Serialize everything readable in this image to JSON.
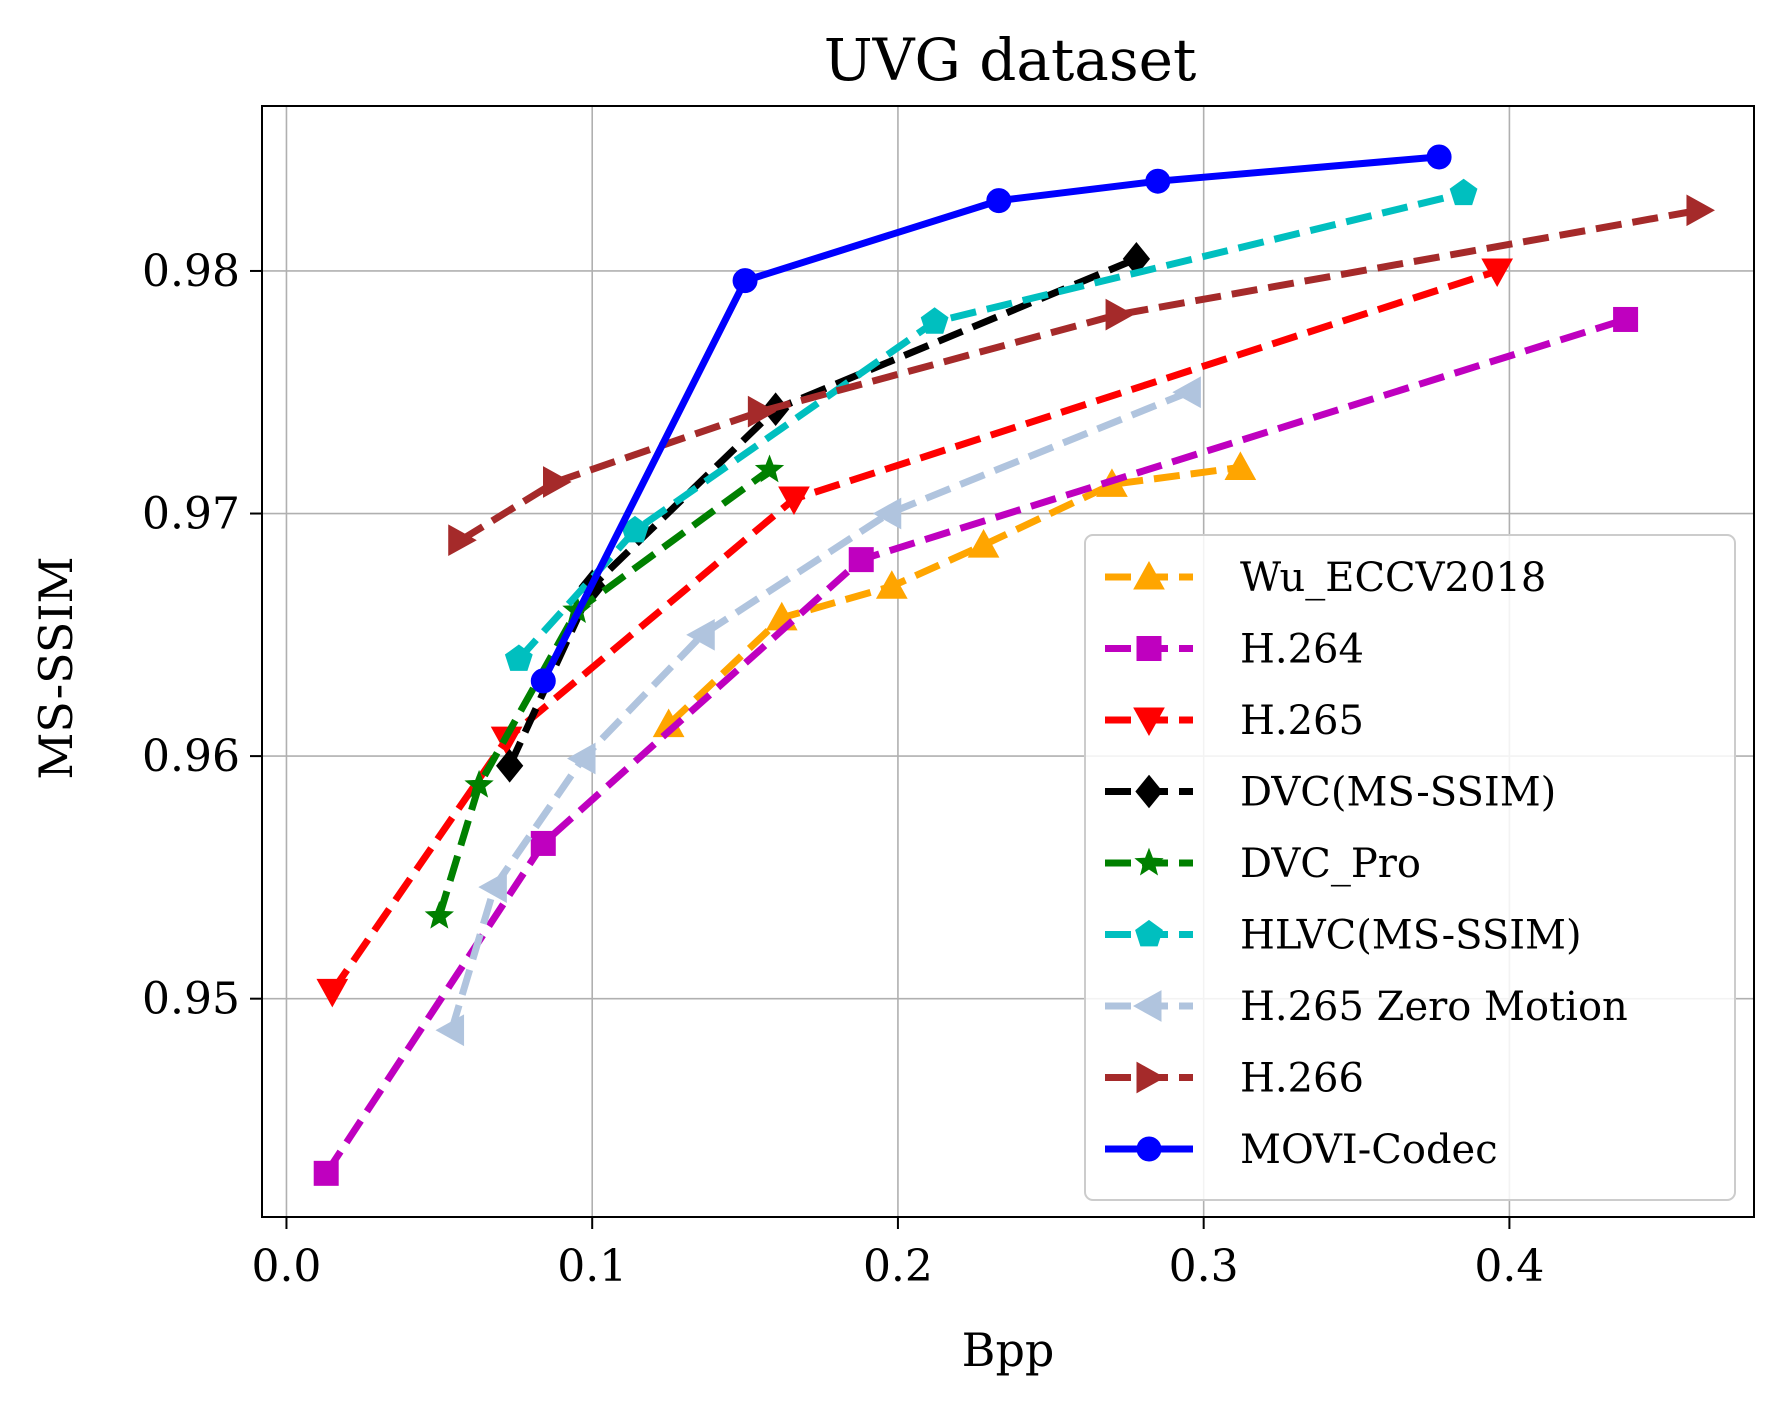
{
  "chart_data": {
    "type": "line",
    "title": "UVG dataset",
    "xlabel": "Bpp",
    "ylabel": "MS-SSIM",
    "xlim": [
      -0.008,
      0.48
    ],
    "ylim": [
      0.941,
      0.9868
    ],
    "xticks": [
      0.0,
      0.1,
      0.2,
      0.3,
      0.4
    ],
    "xtick_labels": [
      "0.0",
      "0.1",
      "0.2",
      "0.3",
      "0.4"
    ],
    "yticks": [
      0.95,
      0.96,
      0.97,
      0.98
    ],
    "ytick_labels": [
      "0.95",
      "0.96",
      "0.97",
      "0.98"
    ],
    "grid": true,
    "legend_position": "lower-right",
    "series": [
      {
        "name": "Wu_ECCV2018",
        "color": "#ffa500",
        "linestyle": "dashed",
        "marker": "triangle-up",
        "x": [
          0.125,
          0.162,
          0.198,
          0.228,
          0.27,
          0.312
        ],
        "y": [
          0.9613,
          0.9657,
          0.967,
          0.9687,
          0.9712,
          0.9719
        ]
      },
      {
        "name": "H.264",
        "color": "#bf00bf",
        "linestyle": "dashed",
        "marker": "square",
        "x": [
          0.013,
          0.084,
          0.188,
          0.438
        ],
        "y": [
          0.9428,
          0.9564,
          0.9681,
          0.978
        ]
      },
      {
        "name": "H.265",
        "color": "#ff0000",
        "linestyle": "dashed",
        "marker": "triangle-down",
        "x": [
          0.015,
          0.072,
          0.166,
          0.396
        ],
        "y": [
          0.9503,
          0.9607,
          0.9706,
          0.98
        ]
      },
      {
        "name": "DVC(MS-SSIM)",
        "color": "#000000",
        "linestyle": "dashed",
        "marker": "diamond",
        "x": [
          0.073,
          0.1,
          0.16,
          0.278
        ],
        "y": [
          0.9596,
          0.967,
          0.9743,
          0.9805
        ]
      },
      {
        "name": "DVC_Pro",
        "color": "#008000",
        "linestyle": "dashed",
        "marker": "star",
        "x": [
          0.05,
          0.063,
          0.095,
          0.158
        ],
        "y": [
          0.9534,
          0.9588,
          0.966,
          0.9718
        ]
      },
      {
        "name": "HLVC(MS-SSIM)",
        "color": "#00bfbf",
        "linestyle": "dashed",
        "marker": "pentagon",
        "x": [
          0.076,
          0.114,
          0.212,
          0.385
        ],
        "y": [
          0.964,
          0.9693,
          0.9779,
          0.9832
        ]
      },
      {
        "name": "H.265 Zero Motion",
        "color": "#b0c4de",
        "linestyle": "dashed",
        "marker": "triangle-left",
        "x": [
          0.054,
          0.068,
          0.097,
          0.136,
          0.197,
          0.295
        ],
        "y": [
          0.9487,
          0.9546,
          0.9599,
          0.965,
          0.97,
          0.975
        ]
      },
      {
        "name": "H.266",
        "color": "#a52a2a",
        "linestyle": "dashed",
        "marker": "triangle-right",
        "x": [
          0.057,
          0.088,
          0.155,
          0.272,
          0.462
        ],
        "y": [
          0.9689,
          0.9713,
          0.9742,
          0.9782,
          0.9825
        ]
      },
      {
        "name": "MOVI-Codec",
        "color": "#0000ff",
        "linestyle": "solid",
        "marker": "circle",
        "x": [
          0.084,
          0.15,
          0.233,
          0.285,
          0.377
        ],
        "y": [
          0.9631,
          0.9796,
          0.9829,
          0.9837,
          0.9847
        ]
      }
    ]
  }
}
